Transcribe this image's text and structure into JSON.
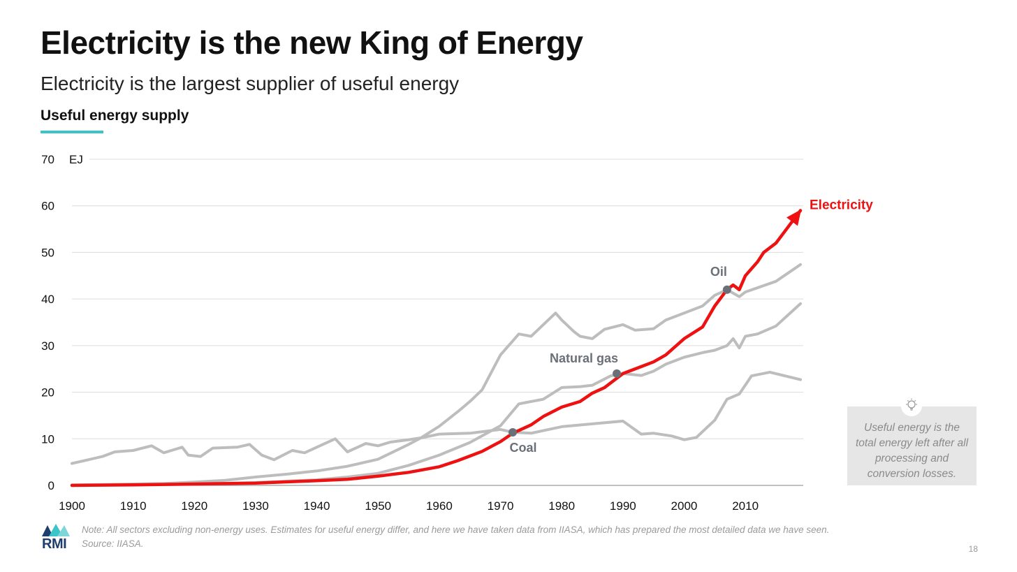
{
  "slide": {
    "title": "Electricity is the new King of Energy",
    "subtitle": "Electricity is the largest supplier of useful energy",
    "section_label": "Useful energy supply",
    "callout": "Useful energy is the total energy left after all processing and conversion losses.",
    "note": "Note: All sectors excluding non-energy uses. Estimates for useful energy differ, and here we have taken data from IIASA, which has prepared the most detailed data we have seen.",
    "source": "Source: IIASA.",
    "page_number": "18",
    "logo_text": "RMI"
  },
  "colors": {
    "highlight": "#ee1111",
    "other": "#bdbdbd",
    "marker": "#6b6f78",
    "annotation": "#6b6f78",
    "accent": "#3cc5c8"
  },
  "chart_data": {
    "type": "line",
    "ylim": [
      0,
      70
    ],
    "xlim": [
      1900,
      2019
    ],
    "y_ticks": [
      0,
      10,
      20,
      30,
      40,
      50,
      60,
      70
    ],
    "x_ticks": [
      1900,
      1910,
      1920,
      1930,
      1940,
      1950,
      1960,
      1970,
      1980,
      1990,
      2000,
      2010
    ],
    "y_unit": "EJ",
    "grid": true,
    "series": [
      {
        "name": "Oil",
        "highlight": false,
        "marker": {
          "x": 2007,
          "y": 42
        },
        "x": [
          1900,
          1905,
          1910,
          1915,
          1920,
          1925,
          1930,
          1935,
          1940,
          1945,
          1950,
          1955,
          1957,
          1960,
          1963,
          1965,
          1967,
          1970,
          1973,
          1975,
          1977,
          1979,
          1980,
          1982,
          1983,
          1985,
          1987,
          1990,
          1992,
          1995,
          1997,
          2000,
          2003,
          2005,
          2007,
          2009,
          2010,
          2015,
          2019
        ],
        "values": [
          0.1,
          0.2,
          0.3,
          0.4,
          0.7,
          1.1,
          1.8,
          2.4,
          3.1,
          4.1,
          5.6,
          8.8,
          10.2,
          12.7,
          15.8,
          18.0,
          20.5,
          28.0,
          32.5,
          32.0,
          34.5,
          37.0,
          35.5,
          33.0,
          32.0,
          31.5,
          33.5,
          34.5,
          33.3,
          33.6,
          35.5,
          37.0,
          38.5,
          40.8,
          42.0,
          40.5,
          41.5,
          43.8,
          47.4
        ]
      },
      {
        "name": "Natural gas",
        "highlight": false,
        "marker": {
          "x": 1989,
          "y": 24
        },
        "x": [
          1900,
          1910,
          1920,
          1930,
          1940,
          1945,
          1950,
          1955,
          1960,
          1965,
          1970,
          1973,
          1975,
          1977,
          1980,
          1983,
          1985,
          1988,
          1990,
          1993,
          1995,
          1997,
          2000,
          2003,
          2005,
          2007,
          2008,
          2009,
          2010,
          2012,
          2015,
          2019
        ],
        "values": [
          0.05,
          0.1,
          0.3,
          0.6,
          1.2,
          1.8,
          2.6,
          4.3,
          6.5,
          9.2,
          12.8,
          17.5,
          18.0,
          18.5,
          21.0,
          21.2,
          21.5,
          23.5,
          24.0,
          23.6,
          24.5,
          26.0,
          27.5,
          28.5,
          29.0,
          30.0,
          31.5,
          29.5,
          32.0,
          32.5,
          34.2,
          39.0
        ]
      },
      {
        "name": "Coal",
        "highlight": false,
        "marker": {
          "x": 1972,
          "y": 11.4
        },
        "x": [
          1900,
          1905,
          1907,
          1910,
          1913,
          1915,
          1918,
          1919,
          1921,
          1923,
          1927,
          1929,
          1931,
          1933,
          1936,
          1938,
          1940,
          1943,
          1945,
          1948,
          1950,
          1952,
          1955,
          1957,
          1960,
          1965,
          1970,
          1972,
          1975,
          1980,
          1985,
          1990,
          1993,
          1995,
          1998,
          2000,
          2002,
          2005,
          2007,
          2009,
          2011,
          2014,
          2019
        ],
        "values": [
          4.7,
          6.2,
          7.2,
          7.5,
          8.5,
          7.0,
          8.2,
          6.5,
          6.2,
          8.0,
          8.2,
          8.8,
          6.5,
          5.5,
          7.5,
          7.0,
          8.2,
          10.0,
          7.2,
          9.0,
          8.5,
          9.3,
          9.8,
          10.2,
          11.0,
          11.2,
          12.0,
          11.4,
          11.2,
          12.6,
          13.2,
          13.8,
          11.0,
          11.2,
          10.6,
          9.8,
          10.3,
          14.0,
          18.5,
          19.6,
          23.5,
          24.3,
          22.7
        ]
      },
      {
        "name": "Electricity",
        "highlight": true,
        "marker": null,
        "x": [
          1900,
          1910,
          1920,
          1930,
          1940,
          1945,
          1950,
          1955,
          1960,
          1963,
          1965,
          1967,
          1970,
          1972,
          1975,
          1977,
          1980,
          1983,
          1985,
          1987,
          1990,
          1993,
          1995,
          1997,
          2000,
          2003,
          2005,
          2007,
          2008,
          2009,
          2010,
          2012,
          2013,
          2015,
          2019
        ],
        "values": [
          0.0,
          0.1,
          0.3,
          0.5,
          1.0,
          1.3,
          2.0,
          2.8,
          4.0,
          5.3,
          6.3,
          7.3,
          9.4,
          11.2,
          13.0,
          14.8,
          16.8,
          18.0,
          19.8,
          21.0,
          24.0,
          25.5,
          26.5,
          28.0,
          31.5,
          34.0,
          38.5,
          42.0,
          43.0,
          42.0,
          45.0,
          48.0,
          50.0,
          52.0,
          59.0
        ]
      }
    ]
  }
}
